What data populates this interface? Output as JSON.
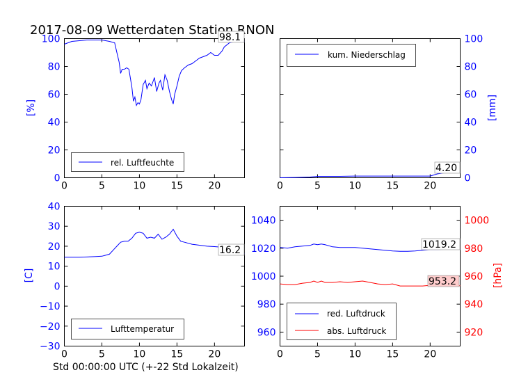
{
  "title": "2017-08-09 Wetterdaten Station RNON",
  "xlabel": "Std 00:00:00 UTC (+-22 Std Lokalzeit)",
  "colors": {
    "blue": "#0000ff",
    "red": "#ff0000",
    "axis": "#000000",
    "label_box_red": "#ffcccc"
  },
  "chart_data": [
    {
      "id": "humidity",
      "type": "line",
      "xlim": [
        0,
        24
      ],
      "ylim": [
        0,
        100
      ],
      "x_ticks": [
        0,
        5,
        10,
        15,
        20
      ],
      "y_ticks": [
        0,
        20,
        40,
        60,
        80,
        100
      ],
      "ylabel": "[%]",
      "legend": {
        "label": "rel. Luftfeuchte",
        "placement": "lower-left"
      },
      "last_value_label": "98.1",
      "series": [
        {
          "name": "rel. Luftfeuchte",
          "color": "#0000ff",
          "x": [
            0,
            0.5,
            1,
            2,
            3,
            4,
            5,
            6,
            6.7,
            7,
            7.3,
            7.5,
            7.7,
            8,
            8.3,
            8.6,
            9,
            9.2,
            9.4,
            9.6,
            9.8,
            10,
            10.2,
            10.5,
            10.8,
            11,
            11.3,
            11.6,
            12,
            12.3,
            12.6,
            12.8,
            13.1,
            13.4,
            13.7,
            14,
            14.3,
            14.5,
            14.7,
            15,
            15.3,
            15.6,
            16,
            16.5,
            17,
            17.5,
            18,
            18.5,
            19,
            19.5,
            20,
            20.5,
            21,
            21.3,
            22,
            23,
            24
          ],
          "y": [
            96,
            97,
            98,
            98.5,
            99,
            99,
            99,
            98,
            97,
            90,
            83,
            75,
            78,
            78,
            79,
            78,
            65,
            55,
            58,
            52,
            54,
            53,
            56,
            67,
            70,
            64,
            68,
            66,
            72,
            62,
            68,
            70,
            63,
            74,
            70,
            62,
            56,
            53,
            60,
            66,
            73,
            77,
            79,
            81,
            82,
            84,
            86,
            87,
            88,
            90,
            88,
            88,
            91,
            94,
            97,
            98,
            98.1
          ]
        }
      ]
    },
    {
      "id": "precipitation",
      "type": "line",
      "xlim": [
        0,
        24
      ],
      "ylim": [
        0,
        100
      ],
      "x_ticks": [
        0,
        5,
        10,
        15,
        20
      ],
      "y_ticks": [
        0,
        20,
        40,
        60,
        80,
        100
      ],
      "ylabel": "[mm]",
      "legend": {
        "label": "kum. Niederschlag",
        "placement": "upper-left"
      },
      "last_value_label": "4.20",
      "series": [
        {
          "name": "kum. Niederschlag",
          "color": "#0000ff",
          "x": [
            0,
            2,
            4,
            5,
            6,
            8,
            10,
            12,
            14,
            16,
            18,
            19,
            20,
            20.5,
            21,
            22,
            23,
            24
          ],
          "y": [
            0,
            0.2,
            0.5,
            1.0,
            1.0,
            1.0,
            1.2,
            1.2,
            1.2,
            1.2,
            1.2,
            1.2,
            1.2,
            2.0,
            2.8,
            3.6,
            4.0,
            4.2
          ]
        }
      ]
    },
    {
      "id": "temperature",
      "type": "line",
      "xlim": [
        0,
        24
      ],
      "ylim": [
        -30,
        40
      ],
      "x_ticks": [
        0,
        5,
        10,
        15,
        20
      ],
      "y_ticks": [
        -30,
        -20,
        -10,
        0,
        10,
        20,
        30,
        40
      ],
      "ylabel": "[C]",
      "legend": {
        "label": "Lufttemperatur",
        "placement": "lower-left"
      },
      "last_value_label": "16.2",
      "series": [
        {
          "name": "Lufttemperatur",
          "color": "#0000ff",
          "x": [
            0,
            1,
            2,
            3,
            4,
            5,
            5.5,
            6,
            6.5,
            7,
            7.5,
            8,
            8.5,
            9,
            9.5,
            10,
            10.5,
            11,
            11.5,
            12,
            12.5,
            13,
            13.5,
            14,
            14.5,
            15,
            15.5,
            16,
            17,
            18,
            19,
            20,
            21,
            22,
            23,
            24
          ],
          "y": [
            14.5,
            14.5,
            14.5,
            14.6,
            14.8,
            15,
            15.5,
            16,
            18,
            20,
            22,
            22.5,
            22.5,
            24,
            26.5,
            27,
            26.5,
            24,
            24.5,
            24,
            26,
            23.5,
            24.5,
            26,
            28.5,
            25,
            22.5,
            22,
            21,
            20.5,
            20,
            19.8,
            19.5,
            18.5,
            17,
            16.2
          ]
        }
      ]
    },
    {
      "id": "pressure",
      "type": "line",
      "xlim": [
        0,
        24
      ],
      "ylim": [
        950,
        1050
      ],
      "x_ticks": [
        0,
        5,
        10,
        15,
        20
      ],
      "y_ticks": [
        960,
        980,
        1000,
        1020,
        1040
      ],
      "ylim_right": [
        910,
        1010
      ],
      "y_ticks_right": [
        920,
        940,
        960,
        980,
        1000
      ],
      "ylabel_right": "[hPa]",
      "legend": {
        "labels": [
          "red. Luftdruck",
          "abs. Luftdruck"
        ],
        "placement": "lower-left"
      },
      "last_value_labels": [
        "1019.2",
        "953.2"
      ],
      "series": [
        {
          "name": "red. Luftdruck",
          "color": "#0000ff",
          "axis": "left",
          "x": [
            0,
            1,
            2,
            3,
            4,
            4.5,
            5,
            5.5,
            6,
            7,
            8,
            9,
            10,
            11,
            12,
            13,
            14,
            15,
            16,
            17,
            18,
            19,
            20,
            21,
            22,
            23,
            24
          ],
          "y": [
            1020.5,
            1020,
            1021,
            1021.5,
            1022,
            1023,
            1022.5,
            1023,
            1022.5,
            1021,
            1020.5,
            1020.5,
            1020.5,
            1020,
            1019.5,
            1019,
            1018.5,
            1018,
            1017.8,
            1017.8,
            1018,
            1018.5,
            1019,
            1019,
            1019.2,
            1019.2,
            1019.2
          ]
        },
        {
          "name": "abs. Luftdruck",
          "color": "#ff0000",
          "axis": "right",
          "x": [
            0,
            1,
            2,
            3,
            4,
            4.5,
            5,
            5.5,
            6,
            7,
            8,
            9,
            10,
            11,
            12,
            13,
            14,
            15,
            16,
            17,
            18,
            19,
            20,
            21,
            22,
            23,
            24
          ],
          "y": [
            954.5,
            954,
            954,
            955,
            955.5,
            956.5,
            955.5,
            956.5,
            955.5,
            955.5,
            956,
            955.5,
            956,
            956.5,
            955.5,
            954.5,
            954,
            954.5,
            953,
            953,
            953,
            953,
            953.5,
            954,
            953.5,
            953.2,
            953.2
          ]
        }
      ]
    }
  ]
}
